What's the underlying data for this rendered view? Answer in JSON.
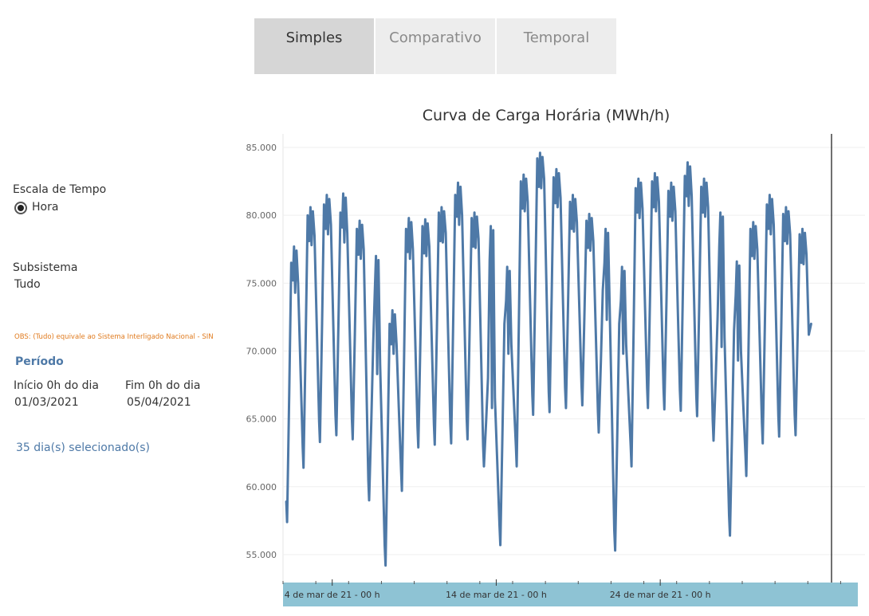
{
  "tabs": [
    {
      "label": "Simples",
      "active": true
    },
    {
      "label": "Comparativo",
      "active": false
    },
    {
      "label": "Temporal",
      "active": false
    }
  ],
  "filters": {
    "time_scale_label": "Escala de Tempo",
    "time_scale_option": "Hora",
    "subsystem_label": "Subsistema",
    "subsystem_value": "Tudo",
    "note": "OBS: (Tudo) equivale ao Sistema Interligado Nacional - SIN",
    "period_label": "Período",
    "start_label": "Início 0h do dia",
    "start_value": "01/03/2021",
    "end_label": "Fim 0h do dia",
    "end_value": "05/04/2021",
    "selected_days": "35 dia(s) selecionado(s)"
  },
  "colors": {
    "line": "#4e79a7",
    "axis_band": "#8ec3d4",
    "note": "#e07b1f",
    "accent": "#4e79a7"
  },
  "chart_data": {
    "type": "line",
    "title": "Curva de Carga Horária (MWh/h)",
    "xlabel": "",
    "ylabel": "",
    "ylim": [
      53000,
      86000
    ],
    "yticks": [
      "85.000",
      "80.000",
      "75.000",
      "70.000",
      "65.000",
      "60.000",
      "55.000"
    ],
    "ytick_values": [
      85000,
      80000,
      75000,
      70000,
      65000,
      60000,
      55000
    ],
    "xticks": [
      "4 de mar de 21 - 00 h",
      "14 de mar de 21 - 00 h",
      "24 de mar de 21 - 00 h"
    ],
    "xtick_days": [
      3,
      13,
      23
    ],
    "x_range_days": [
      0,
      35
    ],
    "series": [
      {
        "days": [
          {
            "day": "01/03",
            "min": 57400,
            "morning": 76500,
            "peak": 77700
          },
          {
            "day": "02/03",
            "min": 61400,
            "morning": 80000,
            "peak": 80600
          },
          {
            "day": "03/03",
            "min": 63300,
            "morning": 80800,
            "peak": 81500
          },
          {
            "day": "04/03",
            "min": 63800,
            "morning": 80200,
            "peak": 81600
          },
          {
            "day": "05/03",
            "min": 63500,
            "morning": 79000,
            "peak": 79600
          },
          {
            "day": "06/03",
            "min": 59000,
            "morning": 70500,
            "peak": 77000
          },
          {
            "day": "07/03",
            "min": 54200,
            "morning": 72000,
            "peak": 73000
          },
          {
            "day": "08/03",
            "min": 59700,
            "morning": 79000,
            "peak": 79800
          },
          {
            "day": "09/03",
            "min": 62900,
            "morning": 79200,
            "peak": 79700
          },
          {
            "day": "10/03",
            "min": 63100,
            "morning": 80200,
            "peak": 80600
          },
          {
            "day": "11/03",
            "min": 63200,
            "morning": 81500,
            "peak": 82400
          },
          {
            "day": "12/03",
            "min": 63500,
            "morning": 79800,
            "peak": 80200
          },
          {
            "day": "13/03",
            "min": 61500,
            "morning": 68000,
            "peak": 79200
          },
          {
            "day": "14/03",
            "min": 55700,
            "morning": 72000,
            "peak": 76200
          },
          {
            "day": "15/03",
            "min": 61500,
            "morning": 82500,
            "peak": 83000
          },
          {
            "day": "16/03",
            "min": 65300,
            "morning": 84200,
            "peak": 84600
          },
          {
            "day": "17/03",
            "min": 65500,
            "morning": 82800,
            "peak": 83400
          },
          {
            "day": "18/03",
            "min": 65800,
            "morning": 81000,
            "peak": 81500
          },
          {
            "day": "19/03",
            "min": 66000,
            "morning": 79600,
            "peak": 80100
          },
          {
            "day": "20/03",
            "min": 64000,
            "morning": 74500,
            "peak": 79000
          },
          {
            "day": "21/03",
            "min": 55300,
            "morning": 72000,
            "peak": 76200
          },
          {
            "day": "22/03",
            "min": 61500,
            "morning": 82000,
            "peak": 82700
          },
          {
            "day": "23/03",
            "min": 65800,
            "morning": 82500,
            "peak": 83100
          },
          {
            "day": "24/03",
            "min": 65700,
            "morning": 81800,
            "peak": 82400
          },
          {
            "day": "25/03",
            "min": 65600,
            "morning": 82900,
            "peak": 83900
          },
          {
            "day": "26/03",
            "min": 65200,
            "morning": 82100,
            "peak": 82700
          },
          {
            "day": "27/03",
            "min": 63400,
            "morning": 72500,
            "peak": 80200
          },
          {
            "day": "28/03",
            "min": 56400,
            "morning": 71500,
            "peak": 76600
          },
          {
            "day": "29/03",
            "min": 60800,
            "morning": 79000,
            "peak": 79500
          },
          {
            "day": "30/03",
            "min": 63200,
            "morning": 80800,
            "peak": 81500
          },
          {
            "day": "31/03",
            "min": 63700,
            "morning": 80100,
            "peak": 80600
          },
          {
            "day": "01/04",
            "min": 63800,
            "morning": 78600,
            "peak": 79000
          }
        ]
      }
    ]
  }
}
